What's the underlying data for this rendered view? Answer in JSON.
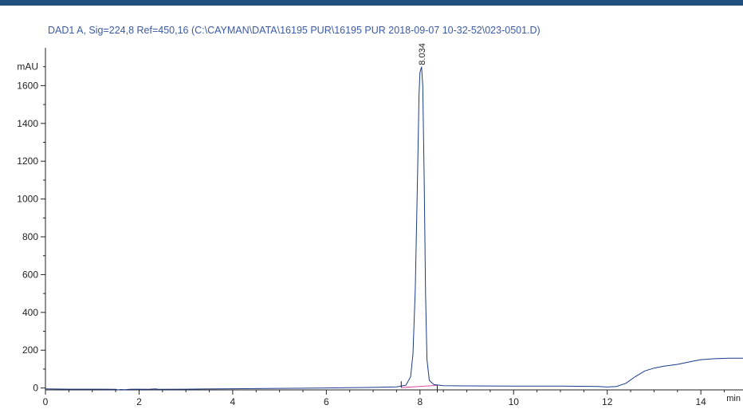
{
  "colors": {
    "header_bar": "#1f4f7c",
    "title": "#3b5ba8",
    "signal_line": "#1a3a8c",
    "baseline": "#e0409a",
    "axis": "#222222"
  },
  "chart_data": {
    "type": "line",
    "title": "DAD1 A, Sig=224,8 Ref=450,16 (C:\\CAYMAN\\DATA\\16195 PUR\\16195 PUR 2018-09-07 10-32-52\\023-0501.D)",
    "ylabel": "mAU",
    "xlabel": "min",
    "xlim": [
      0,
      14.9
    ],
    "ylim": [
      -10,
      1800
    ],
    "x_ticks": [
      0,
      2,
      4,
      6,
      8,
      10,
      12,
      14
    ],
    "x_tick_labels": [
      "0",
      "2",
      "4",
      "6",
      "8",
      "10",
      "12",
      "14"
    ],
    "y_ticks": [
      0,
      200,
      400,
      600,
      800,
      1000,
      1200,
      1400,
      1600
    ],
    "y_tick_labels": [
      "0",
      "200",
      "400",
      "600",
      "800",
      "1000",
      "1200",
      "1400",
      "1600"
    ],
    "peaks": [
      {
        "label": "8.034",
        "rt": 8.034,
        "height": 1700
      }
    ],
    "peak_integration_marks": [
      7.6,
      8.37
    ],
    "series": [
      {
        "x": [
          0,
          0.5,
          1.0,
          1.5,
          1.55,
          1.6,
          1.7,
          1.8,
          1.9,
          2.2,
          2.35,
          2.4,
          2.5,
          3.0,
          4.0,
          5.0,
          6.0,
          7.0,
          7.5,
          7.7,
          7.8,
          7.85,
          7.9,
          7.95,
          7.98,
          8.0,
          8.034,
          8.06,
          8.09,
          8.12,
          8.15,
          8.2,
          8.3,
          8.5,
          9.0,
          10.0,
          11.0,
          11.8,
          12.0,
          12.2,
          12.4,
          12.6,
          12.8,
          13.0,
          13.2,
          13.5,
          13.8,
          14.0,
          14.3,
          14.6,
          14.9
        ],
        "y": [
          -5,
          -6,
          -6,
          -7,
          -10,
          -8,
          -9,
          -7,
          -6,
          -7,
          -5,
          -6,
          -7,
          -6,
          -4,
          -2,
          0,
          3,
          6,
          15,
          60,
          180,
          520,
          1150,
          1550,
          1670,
          1700,
          1600,
          1100,
          500,
          150,
          40,
          18,
          12,
          11,
          10,
          10,
          8,
          5,
          8,
          25,
          60,
          90,
          105,
          115,
          125,
          140,
          150,
          155,
          158,
          158
        ]
      }
    ],
    "baseline_segment": {
      "x": [
        7.6,
        8.37
      ],
      "y": [
        2,
        14
      ]
    }
  }
}
